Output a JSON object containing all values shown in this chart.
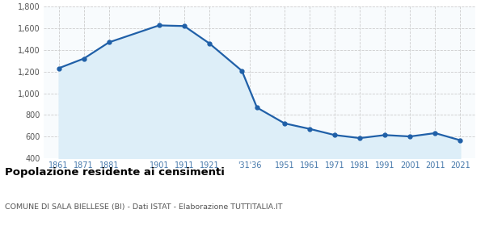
{
  "years": [
    1861,
    1871,
    1881,
    1901,
    1911,
    1921,
    1931,
    1936,
    1951,
    1961,
    1971,
    1981,
    1991,
    2001,
    2011,
    2021
  ],
  "population": [
    1232,
    1321,
    1471,
    1628,
    1622,
    1462,
    1208,
    868,
    722,
    671,
    614,
    586,
    614,
    601,
    632,
    566
  ],
  "custom_x": [
    0,
    1,
    2,
    4,
    5,
    6,
    7.3,
    7.9,
    9,
    10,
    11,
    12,
    13,
    14,
    15,
    16
  ],
  "x_tick_positions": [
    0,
    1,
    2,
    4,
    5,
    6,
    7.6,
    9,
    10,
    11,
    12,
    13,
    14,
    15,
    16
  ],
  "x_tick_labels": [
    "1861",
    "1871",
    "1881",
    "1901",
    "1911",
    "1921",
    "'31'36",
    "1951",
    "1961",
    "1971",
    "1981",
    "1991",
    "2001",
    "2011",
    "2021"
  ],
  "line_color": "#2060a8",
  "fill_color": "#ddeef8",
  "marker_color": "#2060a8",
  "grid_color": "#cccccc",
  "bg_color": "#f8fbfd",
  "title": "Popolazione residente ai censimenti",
  "subtitle": "COMUNE DI SALA BIELLESE (BI) - Dati ISTAT - Elaborazione TUTTITALIA.IT",
  "ylim": [
    400,
    1800
  ],
  "yticks": [
    400,
    600,
    800,
    1000,
    1200,
    1400,
    1600,
    1800
  ],
  "ytick_labels": [
    "400",
    "600",
    "800",
    "1,000",
    "1,200",
    "1,400",
    "1,600",
    "1,800"
  ],
  "xlim": [
    -0.6,
    16.6
  ]
}
